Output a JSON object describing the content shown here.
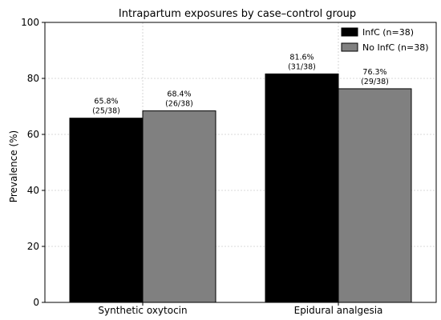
{
  "chart_data": {
    "type": "bar",
    "title": "Intrapartum exposures by case–control group",
    "xlabel": "",
    "ylabel": "Prevalence (%)",
    "ylim": [
      0,
      100
    ],
    "yticks": [
      0,
      20,
      40,
      60,
      80,
      100
    ],
    "grid": true,
    "legend_position": "top-right",
    "categories": [
      "Synthetic oxytocin",
      "Epidural analgesia"
    ],
    "series": [
      {
        "name": "InfC (n=38)",
        "color": "#000000",
        "values": [
          65.8,
          81.6
        ],
        "labels": [
          [
            "65.8%",
            "(25/38)"
          ],
          [
            "81.6%",
            "(31/38)"
          ]
        ]
      },
      {
        "name": "No InfC (n=38)",
        "color": "#808080",
        "values": [
          68.4,
          76.3
        ],
        "labels": [
          [
            "68.4%",
            "(26/38)"
          ],
          [
            "76.3%",
            "(29/38)"
          ]
        ]
      }
    ]
  }
}
